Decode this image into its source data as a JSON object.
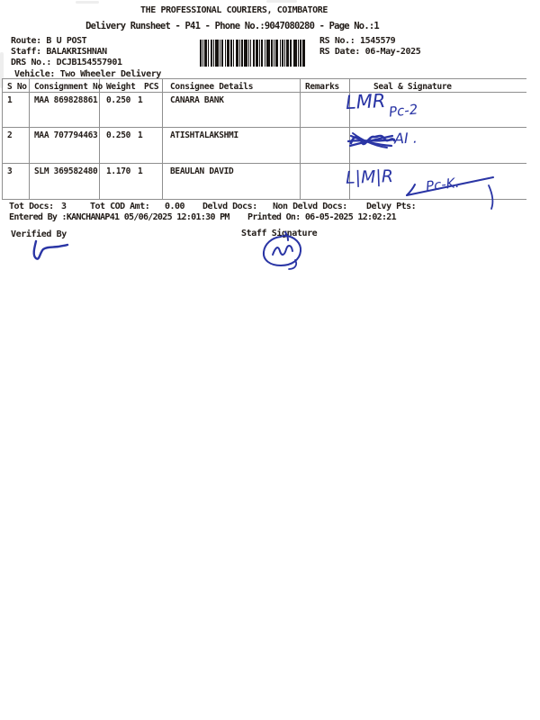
{
  "header": {
    "title": "THE PROFESSIONAL COURIERS, COIMBATORE",
    "subtitle": "Delivery Runsheet - P41 - Phone No.:9047080280 - Page No.:1",
    "route": "Route: B U POST",
    "staff": "Staff: BALAKRISHNAN",
    "drs_no": "DRS No.: DCJB154557901",
    "vehicle": "Vehicle: Two Wheeler Delivery",
    "rs_no": "RS No.: 1545579",
    "rs_date": "RS Date: 06-May-2025"
  },
  "barcode": {
    "bars": [
      2,
      1,
      1,
      1,
      3,
      1,
      1,
      2,
      2,
      1,
      1,
      1,
      4,
      1,
      1,
      1,
      2,
      2,
      1,
      1,
      3,
      1,
      2,
      1,
      1,
      2,
      3,
      1,
      1,
      1,
      2,
      1,
      4,
      1,
      1,
      1,
      1,
      2,
      2,
      1,
      3,
      1,
      1,
      1,
      2,
      2,
      1,
      1,
      4,
      1,
      2,
      1,
      1,
      1,
      3,
      2,
      1,
      1,
      2,
      1,
      1,
      1,
      3,
      1,
      2,
      2,
      4,
      1,
      1,
      1,
      2,
      1,
      3
    ]
  },
  "table": {
    "headers": {
      "s_no": "S No",
      "consignment_no": "Consignment No",
      "weight": "Weight",
      "pcs": "PCS",
      "consignee": "Consignee Details",
      "remarks": "Remarks",
      "seal": "Seal & Signature"
    },
    "rows": [
      {
        "s_no": "1",
        "consignment_no": "MAA 869828861",
        "weight": "0.250",
        "pcs": "1",
        "consignee": "CANARA BANK",
        "remarks": ""
      },
      {
        "s_no": "2",
        "consignment_no": "MAA 707794463",
        "weight": "0.250",
        "pcs": "1",
        "consignee": "ATISHTALAKSHMI",
        "remarks": ""
      },
      {
        "s_no": "3",
        "consignment_no": "SLM 369582480",
        "weight": "1.170",
        "pcs": "1",
        "consignee": "BEAULAN DAVID",
        "remarks": ""
      }
    ]
  },
  "handwriting": {
    "row1_main": "LMR",
    "row1_sub": "Pc-2",
    "row2_note": "AI .",
    "row3_main": "L|M|R",
    "row3_sub": "Pc-K.",
    "ink_color": "#2a35a5"
  },
  "summary": {
    "tot_docs_label": "Tot Docs:",
    "tot_docs_value": "3",
    "tot_cod_label": "Tot COD Amt:",
    "tot_cod_value": "0.00",
    "delvd_docs_label": "Delvd Docs:",
    "non_delvd_docs_label": "Non Delvd Docs:",
    "delvy_pts_label": "Delvy Pts:",
    "entered_by": "Entered By :KANCHANAP41 05/06/2025 12:01:30 PM",
    "printed_on": "Printed On: 06-05-2025 12:02:21"
  },
  "signatures": {
    "verified_by_label": "Verified By",
    "staff_signature_label": "Staff Signature"
  },
  "colors": {
    "text": "#221c18",
    "table_line": "#8f8f8f",
    "ink": "#2a35a5",
    "barcode": "#151210"
  }
}
